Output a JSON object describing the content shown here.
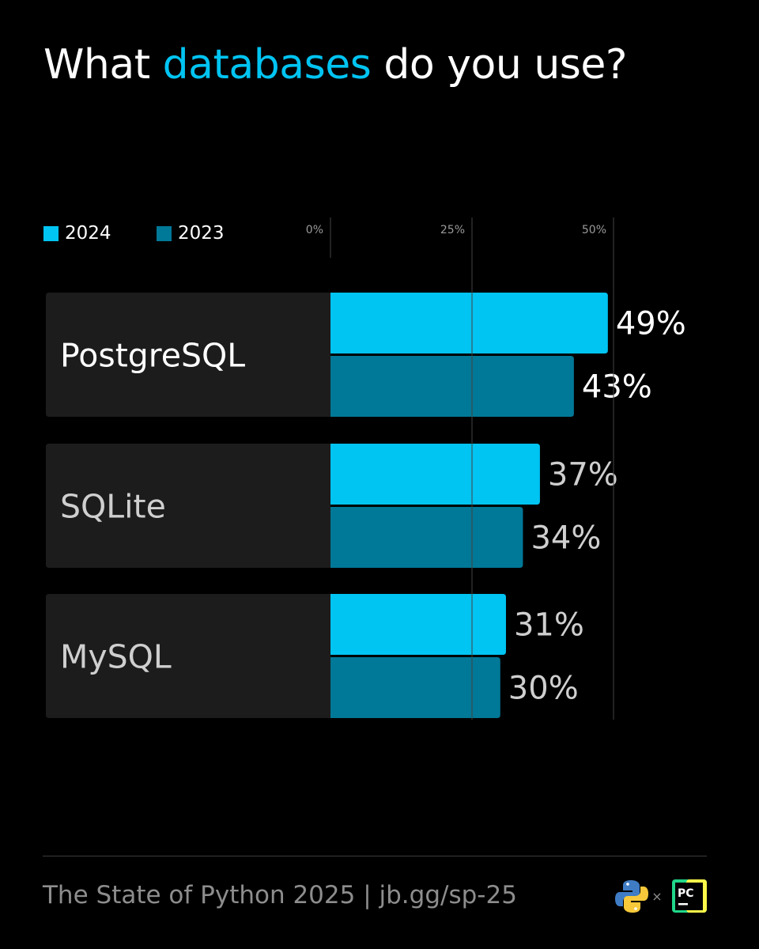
{
  "title": {
    "before": "What",
    "highlight": "databases",
    "after": "do you use?"
  },
  "colors": {
    "background": "#000000",
    "accent": "#00c4f2",
    "series_2024": "#00c4f2",
    "series_2023": "#007897",
    "label_panel": "#1c1c1c",
    "gridline": "#444444"
  },
  "chart_data": {
    "type": "bar",
    "orientation": "horizontal",
    "categories": [
      "PostgreSQL",
      "SQLite",
      "MySQL"
    ],
    "series": [
      {
        "name": "2024",
        "values": [
          49,
          37,
          31
        ],
        "labels": [
          "49%",
          "37%",
          "31%"
        ]
      },
      {
        "name": "2023",
        "values": [
          43,
          34,
          30
        ],
        "labels": [
          "43%",
          "34%",
          "30%"
        ]
      }
    ],
    "ticks": [
      0,
      25,
      50
    ],
    "tick_labels": [
      "0%",
      "25%",
      "50%"
    ],
    "xlim": [
      0,
      50
    ],
    "grid": true,
    "legend": "top-left"
  },
  "footer": {
    "text": "The State of Python 2025 | jb.gg/sp-25",
    "separator": "×",
    "logo_pycharm_text": "PC"
  }
}
